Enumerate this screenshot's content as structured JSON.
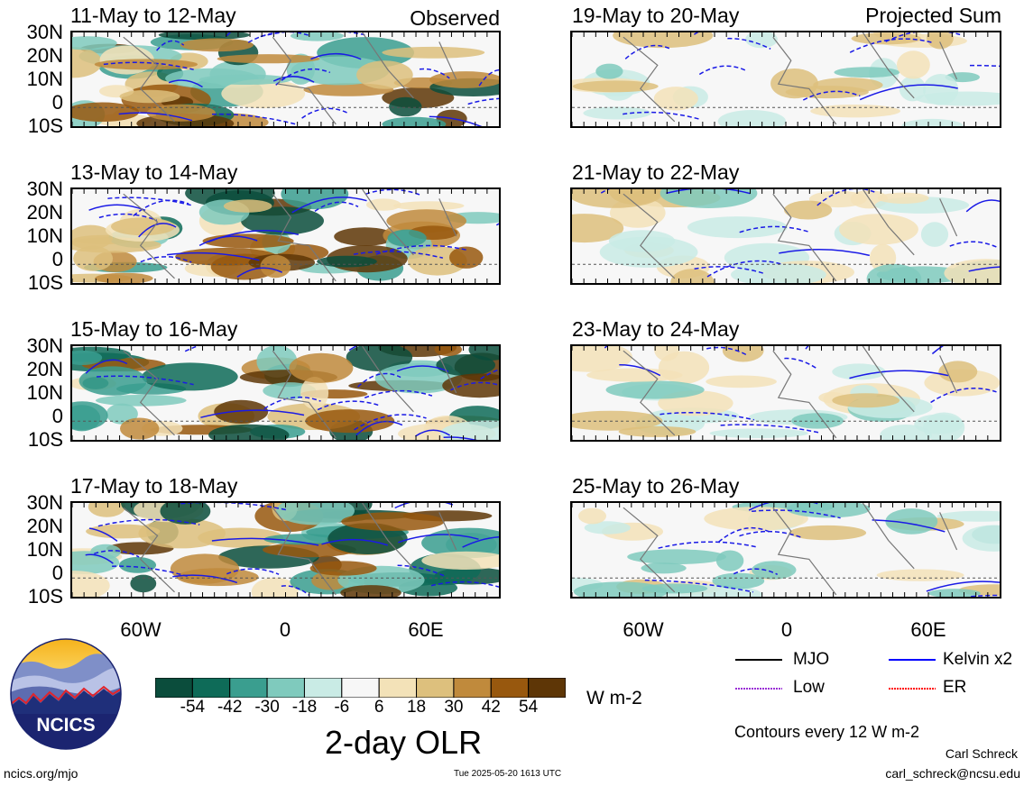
{
  "chart_data": {
    "type": "heatmap",
    "title": "2-day OLR",
    "units": "W m-2",
    "latitude_ticks": [
      "30N",
      "20N",
      "10N",
      "0",
      "10S"
    ],
    "longitude_ticks": [
      "60W",
      "0",
      "60E"
    ],
    "columns": [
      {
        "label": "Observed",
        "panels": [
          "11-May to 12-May",
          "13-May to 14-May",
          "15-May to 16-May",
          "17-May to 18-May"
        ]
      },
      {
        "label": "Projected Sum",
        "panels": [
          "19-May to 20-May",
          "21-May to 22-May",
          "23-May to 24-May",
          "25-May to 26-May"
        ]
      }
    ],
    "colorbar": {
      "tick_labels": [
        "-54",
        "-42",
        "-30",
        "-18",
        "-6",
        "6",
        "18",
        "30",
        "42",
        "54"
      ],
      "colors": [
        "#0b4d3c",
        "#0e6b58",
        "#3a9e8f",
        "#7fcabd",
        "#c9ebe5",
        "#f7f7f7",
        "#f3e2b8",
        "#ddc07d",
        "#c08a3c",
        "#98580e",
        "#5e3606"
      ]
    },
    "legend": [
      {
        "name": "MJO",
        "color": "#000000",
        "style": "solid"
      },
      {
        "name": "Kelvin x2",
        "color": "#0000ff",
        "style": "solid"
      },
      {
        "name": "Low",
        "color": "#9a2fd6",
        "style": "dotted"
      },
      {
        "name": "ER",
        "color": "#ff0000",
        "style": "dotted"
      }
    ],
    "contour_note": "Contours every 12 W m-2"
  },
  "footer": {
    "website": "ncics.org/mjo",
    "timestamp": "Tue 2025-05-20 1613 UTC",
    "author": "Carl Schreck",
    "email": "carl_schreck@ncsu.edu",
    "logo_text": "NCICS"
  }
}
